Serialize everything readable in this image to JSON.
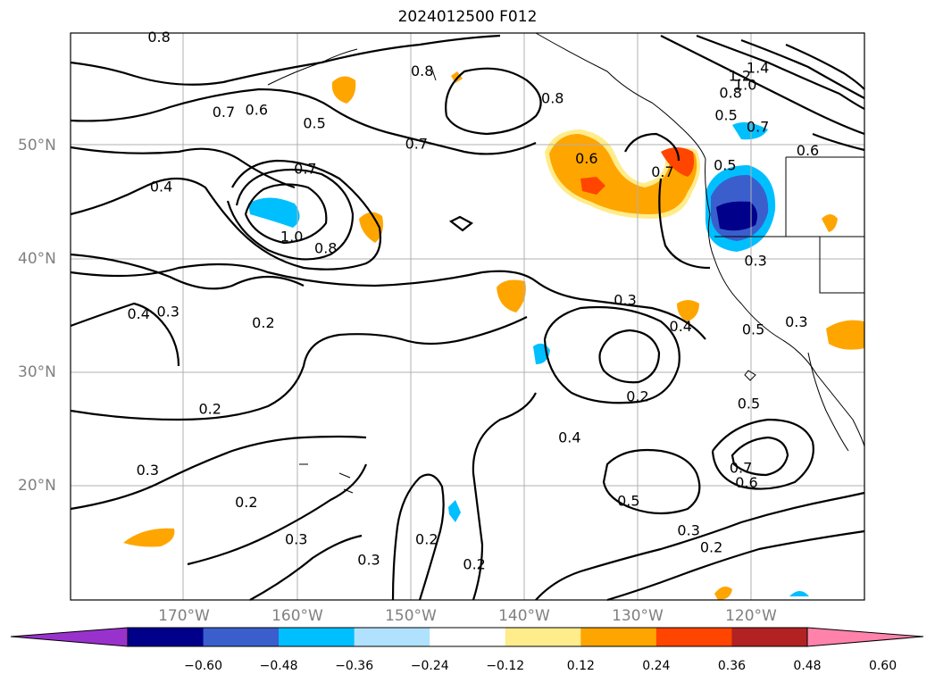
{
  "title": "2024012500 F012",
  "lat_labels": [
    {
      "text": "50°N",
      "lat": 50
    },
    {
      "text": "40°N",
      "lat": 40
    },
    {
      "text": "30°N",
      "lat": 30
    },
    {
      "text": "20°N",
      "lat": 20
    }
  ],
  "lon_labels": [
    {
      "text": "170°W",
      "lon": -170
    },
    {
      "text": "160°W",
      "lon": -160
    },
    {
      "text": "150°W",
      "lon": -150
    },
    {
      "text": "140°W",
      "lon": -140
    },
    {
      "text": "130°W",
      "lon": -130
    },
    {
      "text": "120°W",
      "lon": -120
    }
  ],
  "colorbar": {
    "ticks": [
      "−0.60",
      "−0.48",
      "−0.36",
      "−0.24",
      "−0.12",
      "0.12",
      "0.24",
      "0.36",
      "0.48",
      "0.60"
    ],
    "colors": [
      "#9932cc",
      "#00008b",
      "#3a5fcd",
      "#00bfff",
      "#b0e2ff",
      "#ffffff",
      "#ffec8b",
      "#ffa500",
      "#ff4500",
      "#b22222",
      "#ff82ab"
    ]
  },
  "contour_labels": [
    {
      "text": "0.8",
      "lat": 59.6,
      "lon": -172.2
    },
    {
      "text": "0.7",
      "lat": 53.0,
      "lon": -166.5
    },
    {
      "text": "0.6",
      "lat": 53.2,
      "lon": -163.6
    },
    {
      "text": "0.5",
      "lat": 52.0,
      "lon": -158.5
    },
    {
      "text": "0.8",
      "lat": 56.6,
      "lon": -149.0
    },
    {
      "text": "0.8",
      "lat": 54.2,
      "lon": -137.5
    },
    {
      "text": "0.7",
      "lat": 50.2,
      "lon": -149.5
    },
    {
      "text": "0.7",
      "lat": 48.0,
      "lon": -159.3
    },
    {
      "text": "1.0",
      "lat": 42.0,
      "lon": -160.5
    },
    {
      "text": "0.8",
      "lat": 41.0,
      "lon": -157.5
    },
    {
      "text": "0.4",
      "lat": 46.4,
      "lon": -172.0
    },
    {
      "text": "0.6",
      "lat": 48.9,
      "lon": -134.5
    },
    {
      "text": "0.7",
      "lat": 47.7,
      "lon": -127.8
    },
    {
      "text": "1.4",
      "lat": 56.9,
      "lon": -119.4
    },
    {
      "text": "1.2",
      "lat": 56.2,
      "lon": -121.0
    },
    {
      "text": "1.0",
      "lat": 55.4,
      "lon": -120.5
    },
    {
      "text": "0.8",
      "lat": 54.7,
      "lon": -121.8
    },
    {
      "text": "0.5",
      "lat": 52.7,
      "lon": -122.2
    },
    {
      "text": "0.7",
      "lat": 51.7,
      "lon": -119.4
    },
    {
      "text": "0.6",
      "lat": 49.6,
      "lon": -115.0
    },
    {
      "text": "0.5",
      "lat": 48.3,
      "lon": -122.3
    },
    {
      "text": "0.3",
      "lat": 39.9,
      "lon": -119.6
    },
    {
      "text": "0.3",
      "lat": 36.4,
      "lon": -131.1
    },
    {
      "text": "0.4",
      "lat": 34.1,
      "lon": -126.2
    },
    {
      "text": "0.5",
      "lat": 33.8,
      "lon": -119.8
    },
    {
      "text": "0.3",
      "lat": 34.5,
      "lon": -116.0
    },
    {
      "text": "0.4",
      "lat": 35.2,
      "lon": -174.0
    },
    {
      "text": "0.3",
      "lat": 35.4,
      "lon": -171.4
    },
    {
      "text": "0.2",
      "lat": 34.4,
      "lon": -163.0
    },
    {
      "text": "0.2",
      "lat": 26.8,
      "lon": -167.7
    },
    {
      "text": "0.2",
      "lat": 27.9,
      "lon": -130.0
    },
    {
      "text": "0.5",
      "lat": 27.3,
      "lon": -120.2
    },
    {
      "text": "0.4",
      "lat": 24.3,
      "lon": -136.0
    },
    {
      "text": "0.7",
      "lat": 21.6,
      "lon": -120.9
    },
    {
      "text": "0.6",
      "lat": 20.3,
      "lon": -120.4
    },
    {
      "text": "0.5",
      "lat": 18.7,
      "lon": -130.8
    },
    {
      "text": "0.3",
      "lat": 21.4,
      "lon": -173.2
    },
    {
      "text": "0.2",
      "lat": 18.6,
      "lon": -164.5
    },
    {
      "text": "0.3",
      "lat": 15.3,
      "lon": -160.1
    },
    {
      "text": "0.3",
      "lat": 13.5,
      "lon": -153.7
    },
    {
      "text": "0.2",
      "lat": 15.3,
      "lon": -148.6
    },
    {
      "text": "0.2",
      "lat": 13.1,
      "lon": -144.4
    },
    {
      "text": "0.3",
      "lat": 16.1,
      "lon": -125.5
    },
    {
      "text": "0.2",
      "lat": 14.6,
      "lon": -123.5
    }
  ]
}
